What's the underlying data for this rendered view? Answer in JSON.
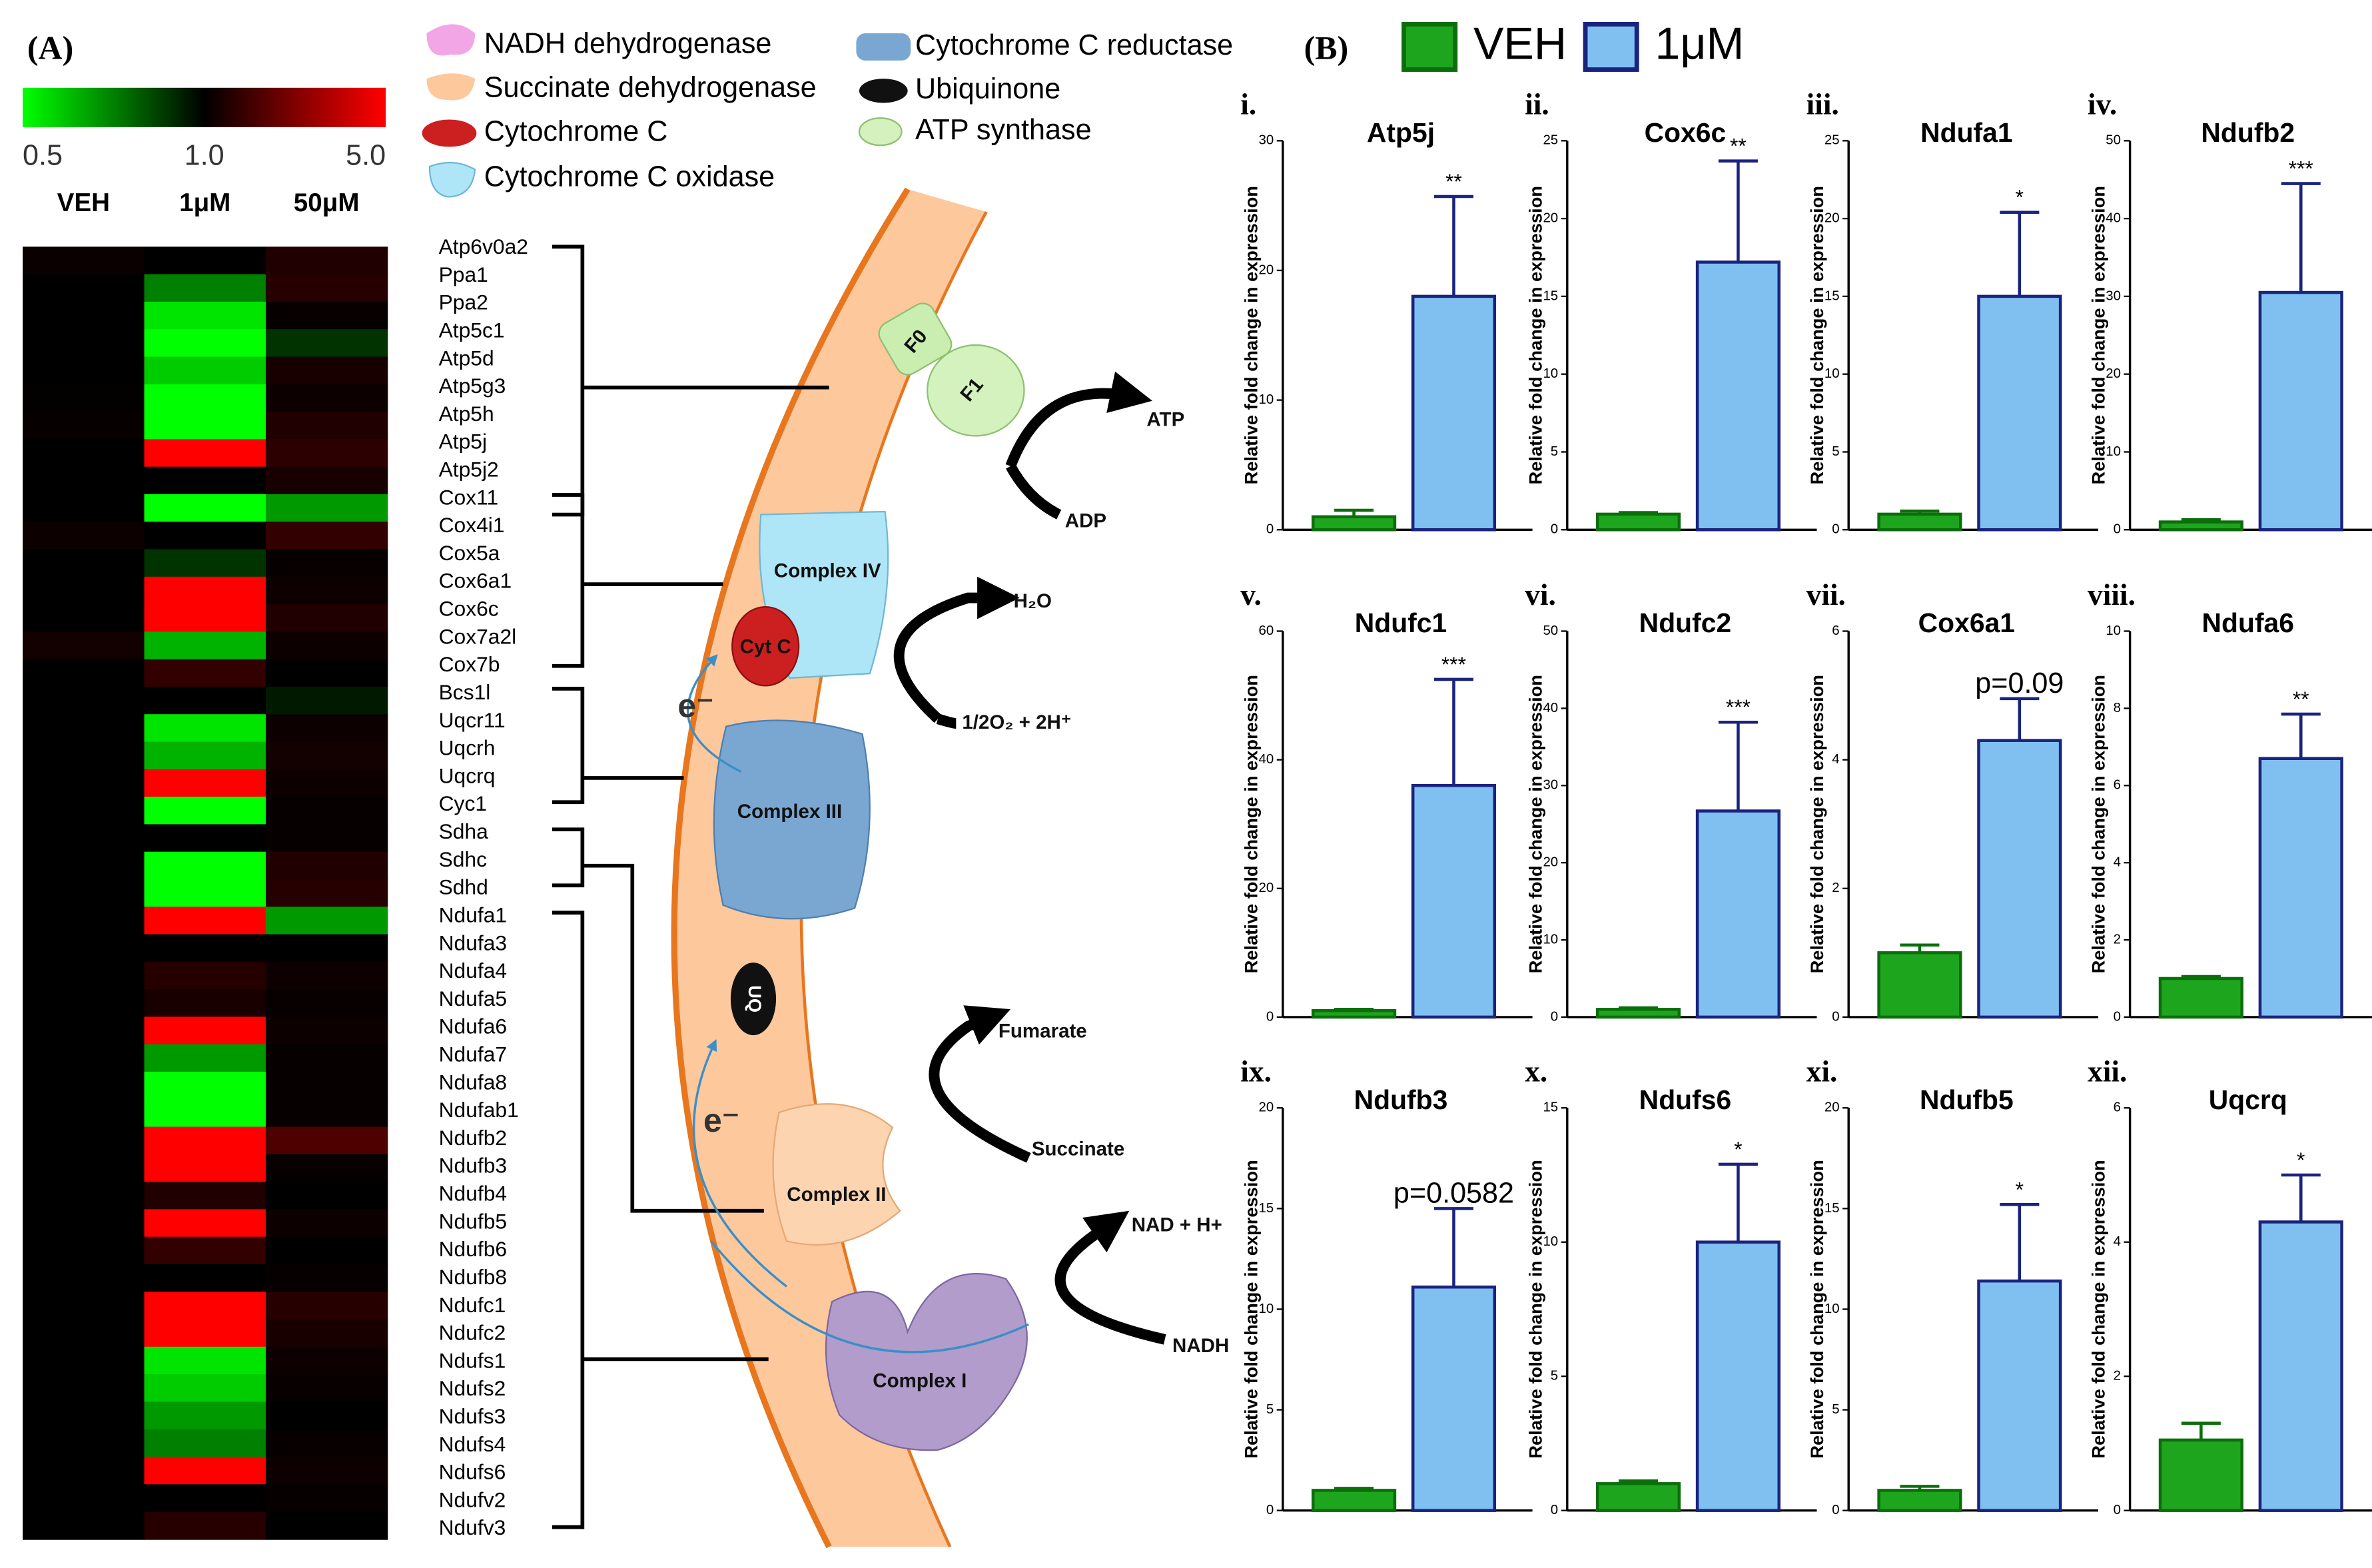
{
  "panel_labels": [
    "(A)",
    "(B)"
  ],
  "legend": {
    "series": [
      {
        "name": "VEH",
        "color": "#1ea51e",
        "edge": "#0b6e0b"
      },
      {
        "name": "1μM",
        "color": "#80c0f0",
        "edge": "#1a237e"
      }
    ]
  },
  "diagram": {
    "legend": [
      "NADH dehydrogenase",
      "Succinate dehydrogenase",
      "Cytochrome C",
      "Cytochrome C oxidase",
      "Cytochrome C reductase",
      "Ubiquinone",
      "ATP synthase"
    ],
    "f0": "F0",
    "f1": "F1",
    "atp": "ATP",
    "adp": "ADP",
    "complex_iv": "Complex IV",
    "cyt_c": "Cyt C",
    "h2o": "H₂O",
    "oxygen": "1/2O₂ + 2H⁺",
    "electron_labels": [
      "e⁻",
      "e⁻"
    ],
    "complex_iii": "Complex III",
    "uq": "UQ",
    "fumarate": "Fumarate",
    "succinate": "Succinate",
    "complex_ii": "Complex II",
    "nad": "NAD + H+",
    "nadh": "NADH",
    "complex_i": "Complex I"
  },
  "chart_data": [
    {
      "type": "heatmap",
      "columns": [
        "VEH",
        "1μM",
        "50μM"
      ],
      "colorscale": [
        "#00ff00",
        "#000000",
        "#ff0000"
      ],
      "cticks": [
        0.5,
        {
          "value": 1,
          "label": "1.0"
        },
        {
          "value": 5,
          "label": "5.0"
        }
      ],
      "rows": [
        "Atp6v0a2",
        "Ppa1",
        "Ppa2",
        "Atp5c1",
        "Atp5d",
        "Atp5g3",
        "Atp5h",
        "Atp5j",
        "Atp5j2",
        "Cox11",
        "Cox4i1",
        "Cox5a",
        "Cox6a1",
        "Cox6c",
        "Cox7a2l",
        "Cox7b",
        "Bcs1l",
        "Uqcr11",
        "Uqcrh",
        "Uqcrq",
        "Cyc1",
        "Sdha",
        "Sdhc",
        "Sdhd",
        "Ndufa1",
        "Ndufa3",
        "Ndufa4",
        "Ndufa5",
        "Ndufa6",
        "Ndufa7",
        "Ndufa8",
        "Ndufab1",
        "Ndufb2",
        "Ndufb3",
        "Ndufb4",
        "Ndufb5",
        "Ndufb6",
        "Ndufb8",
        "Ndufc1",
        "Ndufc2",
        "Ndufs1",
        "Ndufs2",
        "Ndufs3",
        "Ndufs4",
        "Ndufs6",
        "Ndufv2",
        "Ndufv3"
      ],
      "values": [
        [
          1.15,
          1.0,
          1.5
        ],
        [
          1.0,
          0.75,
          1.6
        ],
        [
          1.0,
          0.55,
          1.1
        ],
        [
          1.0,
          0.5,
          0.9
        ],
        [
          1.0,
          0.6,
          1.4
        ],
        [
          1.05,
          0.5,
          1.2
        ],
        [
          1.1,
          0.5,
          1.5
        ],
        [
          1.0,
          5,
          1.7
        ],
        [
          1.0,
          1.0,
          1.4
        ],
        [
          1.0,
          0.5,
          0.7
        ],
        [
          1.2,
          1.0,
          1.8
        ],
        [
          1.0,
          0.9,
          1.1
        ],
        [
          1.0,
          5,
          1.2
        ],
        [
          1.0,
          5,
          1.5
        ],
        [
          1.3,
          0.65,
          1.2
        ],
        [
          1.0,
          1.8,
          1.0
        ],
        [
          1.0,
          1.0,
          0.95
        ],
        [
          1.0,
          0.55,
          1.2
        ],
        [
          1.0,
          0.65,
          1.3
        ],
        [
          1.0,
          5,
          1.2
        ],
        [
          1.0,
          0.5,
          1.1
        ],
        [
          1.0,
          1.0,
          1.1
        ],
        [
          1.0,
          0.5,
          1.5
        ],
        [
          1.0,
          0.5,
          1.6
        ],
        [
          1.0,
          5,
          0.7
        ],
        [
          1.0,
          1.0,
          1.0
        ],
        [
          1.0,
          1.6,
          1.2
        ],
        [
          1.0,
          1.4,
          1.1
        ],
        [
          1.0,
          5,
          1.2
        ],
        [
          1.0,
          0.7,
          1.1
        ],
        [
          1.0,
          0.5,
          1.1
        ],
        [
          1.0,
          0.5,
          1.1
        ],
        [
          1.0,
          5,
          2.2
        ],
        [
          1.0,
          5,
          1.1
        ],
        [
          1.0,
          1.5,
          1.0
        ],
        [
          1.0,
          5,
          1.2
        ],
        [
          1.0,
          1.8,
          1.0
        ],
        [
          1.0,
          1.0,
          1.1
        ],
        [
          1.0,
          5,
          1.6
        ],
        [
          1.0,
          5,
          1.4
        ],
        [
          1.0,
          0.55,
          1.2
        ],
        [
          1.0,
          0.6,
          1.1
        ],
        [
          1.0,
          0.7,
          1.0
        ],
        [
          1.0,
          0.75,
          1.1
        ],
        [
          1.0,
          5,
          1.2
        ],
        [
          1.0,
          1.0,
          1.1
        ],
        [
          1.0,
          1.6,
          1.0
        ]
      ]
    },
    {
      "type": "bar",
      "label": "i.",
      "title": "Atp5j",
      "ylabel": "Relative fold change in expression",
      "values": [
        1.0,
        18
      ],
      "errors": [
        0.5,
        7.7
      ],
      "annotation": "**",
      "ylim": [
        0,
        30
      ],
      "yticks": [
        0,
        10,
        20,
        30
      ]
    },
    {
      "type": "bar",
      "label": "ii.",
      "title": "Cox6c",
      "ylabel": "Relative fold change in expression",
      "values": [
        1.0,
        17.2
      ],
      "errors": [
        0.1,
        6.5
      ],
      "annotation": "**",
      "ylim": [
        0,
        25
      ],
      "yticks": [
        0,
        5,
        10,
        15,
        20,
        25
      ]
    },
    {
      "type": "bar",
      "label": "iii.",
      "title": "Ndufa1",
      "ylabel": "Relative fold change in expression",
      "values": [
        1.0,
        15
      ],
      "errors": [
        0.2,
        5.4
      ],
      "annotation": "*",
      "ylim": [
        0,
        25
      ],
      "yticks": [
        0,
        5,
        10,
        15,
        20,
        25
      ]
    },
    {
      "type": "bar",
      "label": "iv.",
      "title": "Ndufb2",
      "ylabel": "Relative fold change in expression",
      "values": [
        1.0,
        30.5
      ],
      "errors": [
        0.3,
        14
      ],
      "annotation": "***",
      "ylim": [
        0,
        50
      ],
      "yticks": [
        0,
        10,
        20,
        30,
        40,
        50
      ]
    },
    {
      "type": "bar",
      "label": "v.",
      "title": "Ndufc1",
      "ylabel": "Relative fold change in expression",
      "values": [
        1.0,
        36
      ],
      "errors": [
        0.2,
        16.5
      ],
      "annotation": "***",
      "ylim": [
        0,
        60
      ],
      "yticks": [
        0,
        20,
        40,
        60
      ]
    },
    {
      "type": "bar",
      "label": "vi.",
      "title": "Ndufc2",
      "ylabel": "Relative fold change in expression",
      "values": [
        1.0,
        26.7
      ],
      "errors": [
        0.2,
        11.5
      ],
      "annotation": "***",
      "ylim": [
        0,
        50
      ],
      "yticks": [
        0,
        10,
        20,
        30,
        40,
        50
      ]
    },
    {
      "type": "bar",
      "label": "vii.",
      "title": "Cox6a1",
      "ylabel": "Relative fold change in expression",
      "values": [
        1.0,
        4.3
      ],
      "errors": [
        0.12,
        0.65
      ],
      "annotation": "p=0.09",
      "ylim": [
        0,
        6
      ],
      "yticks": [
        0,
        2,
        4,
        6
      ]
    },
    {
      "type": "bar",
      "label": "viii.",
      "title": "Ndufa6",
      "ylabel": "Relative fold change in expression",
      "values": [
        1.0,
        6.7
      ],
      "errors": [
        0.05,
        1.15
      ],
      "annotation": "**",
      "ylim": [
        0,
        10
      ],
      "yticks": [
        0,
        2,
        4,
        6,
        8,
        10
      ]
    },
    {
      "type": "bar",
      "label": "ix.",
      "title": "Ndufb3",
      "ylabel": "Relative fold change in expression",
      "values": [
        1.0,
        11.1
      ],
      "errors": [
        0.1,
        3.9
      ],
      "annotation": "p=0.0582",
      "ylim": [
        0,
        20
      ],
      "yticks": [
        0,
        5,
        10,
        15,
        20
      ]
    },
    {
      "type": "bar",
      "label": "x.",
      "title": "Ndufs6",
      "ylabel": "Relative fold change in expression",
      "values": [
        1.0,
        10
      ],
      "errors": [
        0.1,
        2.9
      ],
      "annotation": "*",
      "ylim": [
        0,
        15
      ],
      "yticks": [
        0,
        5,
        10,
        15
      ]
    },
    {
      "type": "bar",
      "label": "xi.",
      "title": "Ndufb5",
      "ylabel": "Relative fold change in expression",
      "values": [
        1.0,
        11.4
      ],
      "errors": [
        0.2,
        3.8
      ],
      "annotation": "*",
      "ylim": [
        0,
        20
      ],
      "yticks": [
        0,
        5,
        10,
        15,
        20
      ]
    },
    {
      "type": "bar",
      "label": "xii.",
      "title": "Uqcrq",
      "ylabel": "Relative fold change in expression",
      "values": [
        1.05,
        4.3
      ],
      "errors": [
        0.25,
        0.7
      ],
      "annotation": "*",
      "ylim": [
        0,
        6
      ],
      "yticks": [
        0,
        2,
        4,
        6
      ]
    }
  ]
}
